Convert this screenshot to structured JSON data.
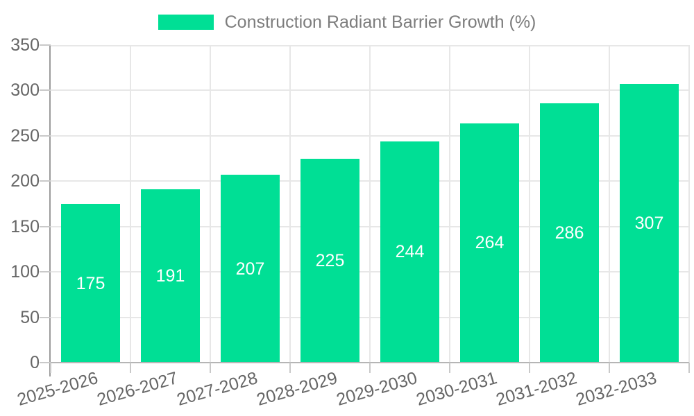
{
  "chart_data": {
    "type": "bar",
    "title": "",
    "categories": [
      "2025-2026",
      "2026-2027",
      "2027-2028",
      "2028-2029",
      "2029-2030",
      "2030-2031",
      "2031-2032",
      "2032-2033"
    ],
    "series": [
      {
        "name": "Construction Radiant Barrier Growth (%)",
        "values": [
          175,
          191,
          207,
          225,
          244,
          264,
          286,
          307
        ]
      }
    ],
    "xlabel": "",
    "ylabel": "",
    "ylim": [
      0,
      350
    ],
    "yticks": [
      0,
      50,
      100,
      150,
      200,
      250,
      300,
      350
    ],
    "grid": true,
    "legend_position": "top",
    "value_labels_position": "inside-center",
    "colors": {
      "bar": "#00df95",
      "value_label": "#ffffff",
      "gridline": "#e7e7e7",
      "tick": "#c9c9c9",
      "y_axis_line": "#9b9b9b",
      "x_axis_line": "#b5b5b5",
      "axis_text": "#666666",
      "legend_text": "#7d7d7d"
    }
  }
}
